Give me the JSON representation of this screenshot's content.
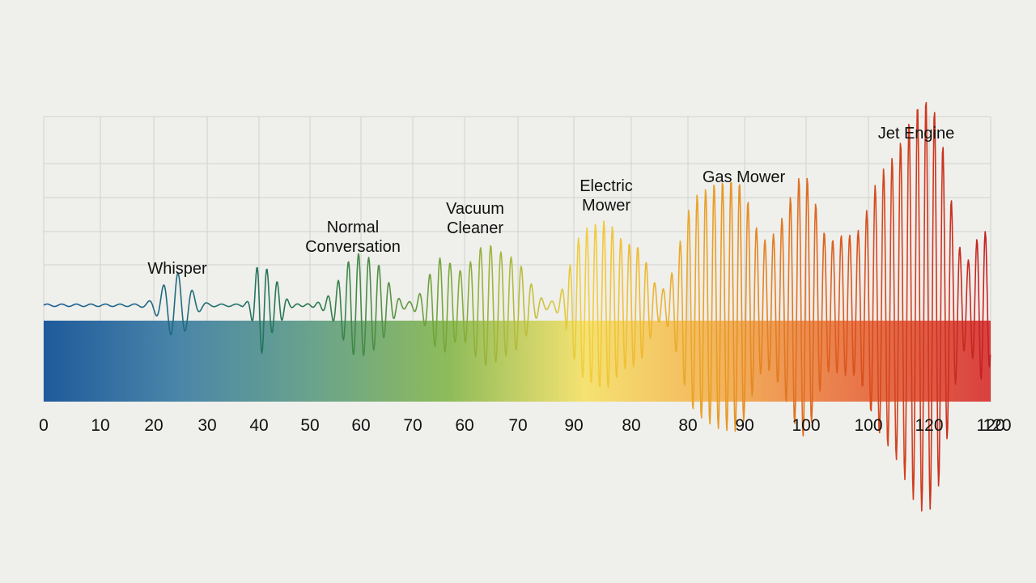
{
  "chart_data": {
    "type": "area",
    "title": "",
    "xlabel": "",
    "ylabel": "",
    "grid": true,
    "legend": "none",
    "x_tick_labels": [
      "0",
      "10",
      "20",
      "30",
      "40",
      "50",
      "60",
      "70",
      "60",
      "70",
      "90",
      "80",
      "80",
      "90",
      "100",
      "100",
      "120",
      "120",
      "120"
    ],
    "gradient_colors": [
      "#1f5a9c",
      "#4a86a8",
      "#6aa38c",
      "#8ebc5a",
      "#f5e272",
      "#f3b45c",
      "#e9774a",
      "#d9403f"
    ],
    "waveform_colors": [
      "#1d5c94",
      "#1f6c7c",
      "#2a7a4e",
      "#7aa83a",
      "#f2cf3e",
      "#e89a24",
      "#d9511c",
      "#c41f1f"
    ],
    "annotations": [
      {
        "label": "Whisper",
        "x_level": 20
      },
      {
        "label": "Normal Conversation",
        "x_level": 60
      },
      {
        "label": "Vacuum Cleaner",
        "x_level": 70
      },
      {
        "label": "Electric Mower",
        "x_level": 90
      },
      {
        "label": "Gas Mower",
        "x_level": 90
      },
      {
        "label": "Jet Engine",
        "x_level": 120
      }
    ]
  }
}
